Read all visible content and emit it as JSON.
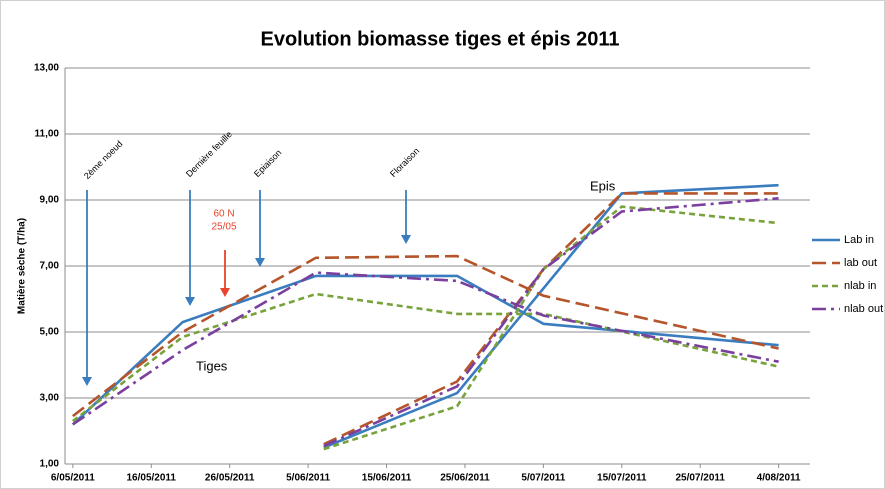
{
  "chart_data": {
    "type": "line",
    "title": "Evolution biomasse tiges et épis 2011",
    "y_label": "Matière sèche  (T/ha)",
    "xlim": [
      "5/05/2011",
      "8/08/2011"
    ],
    "xticks": [
      "6/05/2011",
      "16/05/2011",
      "26/05/2011",
      "5/06/2011",
      "15/06/2011",
      "25/06/2011",
      "5/07/2011",
      "15/07/2011",
      "25/07/2011",
      "4/08/2011"
    ],
    "ylim": [
      1,
      13
    ],
    "yticks": [
      {
        "value": 1,
        "label": "1,00"
      },
      {
        "value": 3,
        "label": "3,00"
      },
      {
        "value": 5,
        "label": "5,00"
      },
      {
        "value": 7,
        "label": "7,00"
      },
      {
        "value": 9,
        "label": "9,00"
      },
      {
        "value": 11,
        "label": "11,00"
      },
      {
        "value": 13,
        "label": "13,00"
      }
    ],
    "grid": true,
    "legend": "right",
    "series": [
      {
        "name": "Lab in",
        "color": "#3a7dbf",
        "dash": "solid",
        "x": [
          "6/05/2011",
          "20/05/2011",
          "6/06/2011",
          "24/06/2011",
          "5/07/2011",
          "4/08/2011",
          null,
          "7/06/2011",
          "24/06/2011",
          "15/07/2011",
          "4/08/2011"
        ],
        "values": [
          2.2,
          5.3,
          6.7,
          6.7,
          5.25,
          4.6,
          null,
          1.5,
          3.15,
          9.2,
          9.45
        ]
      },
      {
        "name": "lab out",
        "color": "#b4552b",
        "dash": "long-dash",
        "x": [
          "6/05/2011",
          "20/05/2011",
          "6/06/2011",
          "24/06/2011",
          "5/07/2011",
          "4/08/2011",
          null,
          "7/06/2011",
          "24/06/2011",
          "5/07/2011",
          "15/07/2011",
          "4/08/2011"
        ],
        "values": [
          2.45,
          5.0,
          7.25,
          7.3,
          6.1,
          4.5,
          null,
          1.6,
          3.5,
          6.9,
          9.2,
          9.2
        ]
      },
      {
        "name": "nlab in",
        "color": "#78a23b",
        "dash": "dash",
        "x": [
          "6/05/2011",
          "20/05/2011",
          "6/06/2011",
          "24/06/2011",
          "5/07/2011",
          "4/08/2011",
          null,
          "7/06/2011",
          "24/06/2011",
          "5/07/2011",
          "15/07/2011",
          "4/08/2011"
        ],
        "values": [
          2.3,
          4.85,
          6.15,
          5.55,
          5.55,
          3.95,
          null,
          1.45,
          2.75,
          6.9,
          8.8,
          8.3
        ]
      },
      {
        "name": "nlab out",
        "color": "#7b3f9e",
        "dash": "dash-dot",
        "x": [
          "6/05/2011",
          "20/05/2011",
          "6/06/2011",
          "24/06/2011",
          "5/07/2011",
          "4/08/2011",
          null,
          "7/06/2011",
          "24/06/2011",
          "5/07/2011",
          "15/07/2011",
          "4/08/2011"
        ],
        "values": [
          2.2,
          4.45,
          6.8,
          6.55,
          5.5,
          4.1,
          null,
          1.55,
          3.35,
          6.9,
          8.65,
          9.05
        ]
      }
    ],
    "annotations": [
      "2ème noeud",
      "Dernière feuille",
      "Epiaison",
      "Floraison",
      "60 N",
      "25/05",
      "Tiges",
      "Epis"
    ]
  }
}
